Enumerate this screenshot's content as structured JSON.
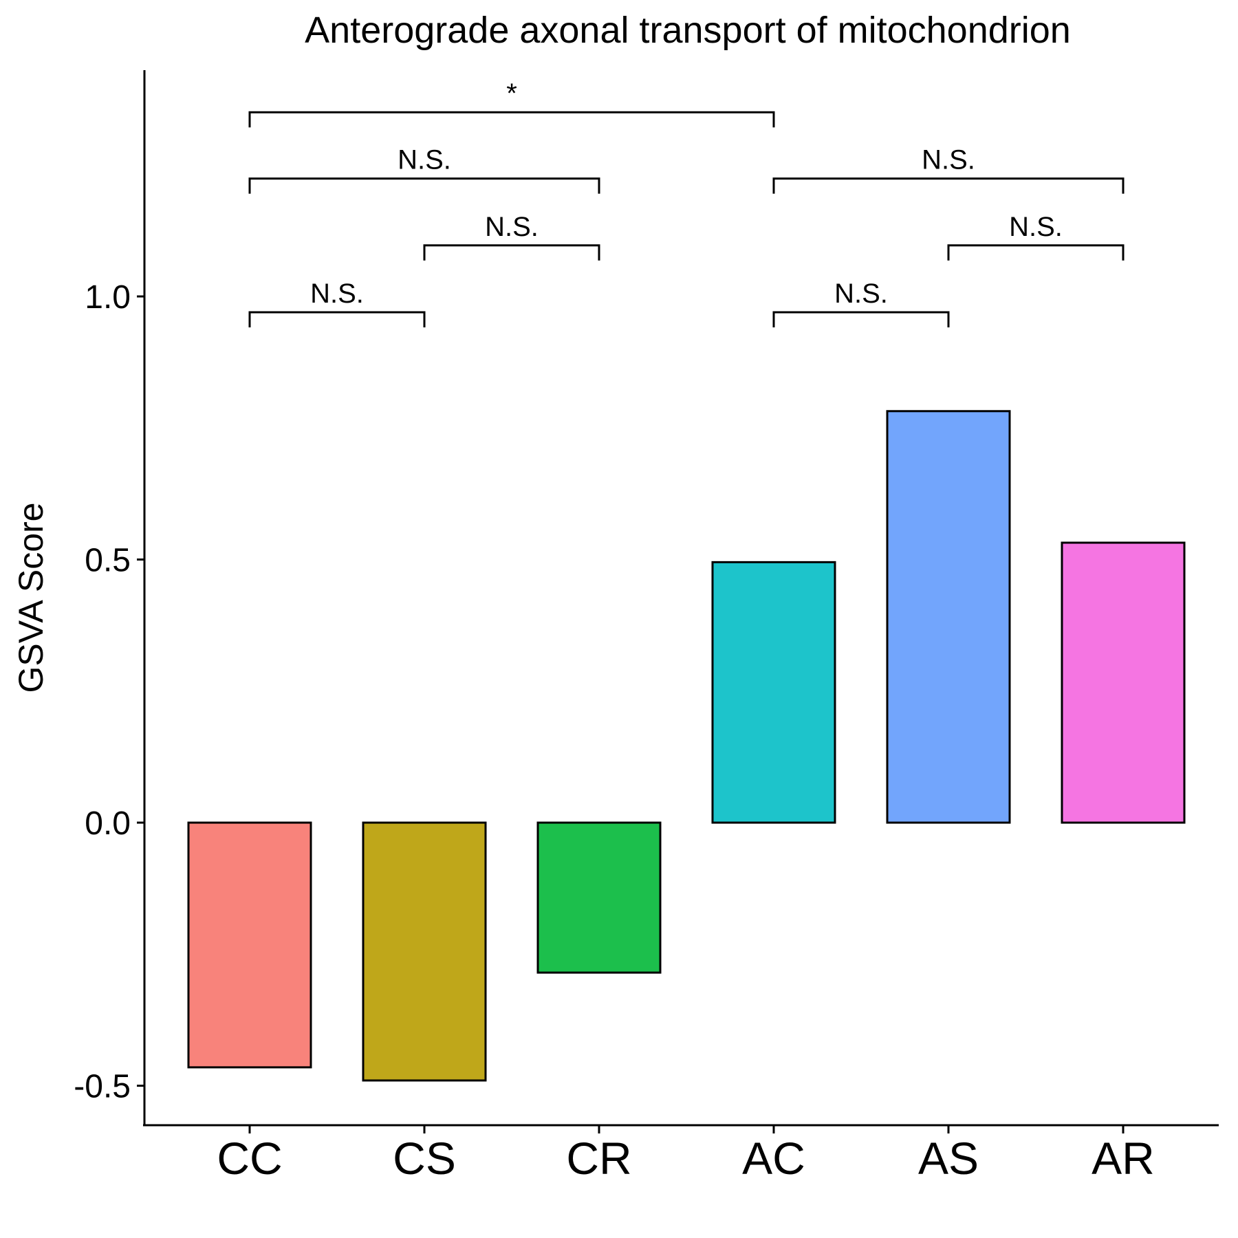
{
  "chart_data": {
    "type": "bar",
    "title": "Anterograde axonal transport of mitochondrion",
    "xlabel": "",
    "ylabel": "GSVA Score",
    "categories": [
      "CC",
      "CS",
      "CR",
      "AC",
      "AS",
      "AR"
    ],
    "values": [
      -0.465,
      -0.49,
      -0.285,
      0.495,
      0.782,
      0.532
    ],
    "colors": [
      "#F8837B",
      "#BFA71A",
      "#1CBF4C",
      "#1DC4CB",
      "#72A5FC",
      "#F575E2"
    ],
    "ylim": [
      -0.575,
      1.43
    ],
    "yticks": [
      -0.5,
      0.0,
      0.5,
      1.0
    ],
    "ytick_labels": [
      "-0.5",
      "0.0",
      "0.5",
      "1.0"
    ],
    "grid": false,
    "legend": "none",
    "comparisons": [
      {
        "from": "CC",
        "to": "CS",
        "label": "N.S.",
        "y": 0.97
      },
      {
        "from": "CS",
        "to": "CR",
        "label": "N.S.",
        "y": 1.097
      },
      {
        "from": "CC",
        "to": "CR",
        "label": "N.S.",
        "y": 1.224
      },
      {
        "from": "AC",
        "to": "AS",
        "label": "N.S.",
        "y": 0.97
      },
      {
        "from": "AS",
        "to": "AR",
        "label": "N.S.",
        "y": 1.097
      },
      {
        "from": "AC",
        "to": "AR",
        "label": "N.S.",
        "y": 1.224
      },
      {
        "from": "CC",
        "to": "AC",
        "label": "*",
        "y": 1.35
      }
    ]
  }
}
